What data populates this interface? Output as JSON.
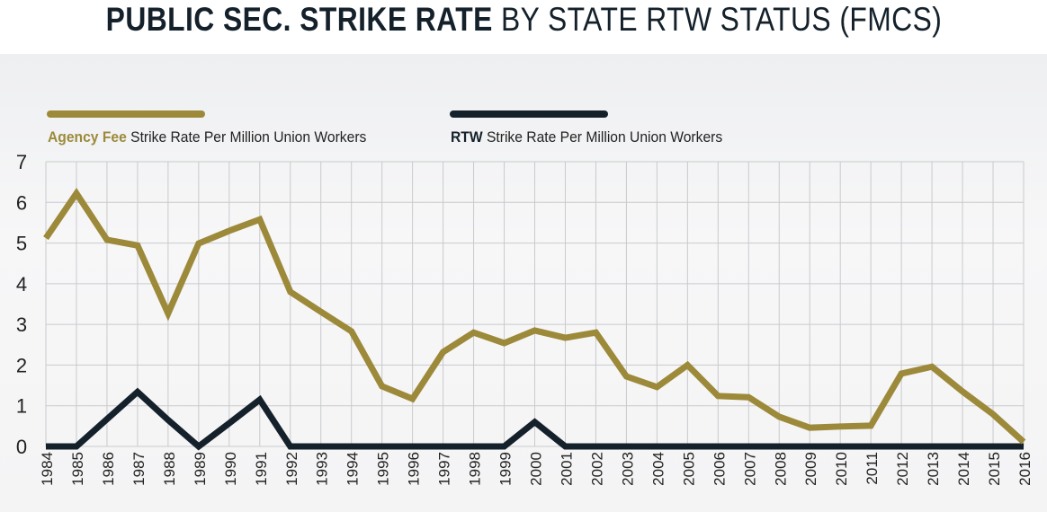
{
  "title": {
    "bold": "PUBLIC SEC. STRIKE RATE",
    "light": "BY STATE RTW STATUS (FMCS)"
  },
  "colors": {
    "agency_fee": "#9c8a3a",
    "rtw": "#14212b",
    "grid": "#c9cacc"
  },
  "chart_data": {
    "type": "line",
    "title": "PUBLIC SEC. STRIKE RATE BY STATE RTW STATUS (FMCS)",
    "xlabel": "",
    "ylabel": "",
    "ylim": [
      0,
      7
    ],
    "yticks": [
      "0",
      "1",
      "2",
      "3",
      "4",
      "5",
      "6",
      "7"
    ],
    "grid": true,
    "legend_position": "top",
    "x": [
      "1984",
      "1985",
      "1986",
      "1987",
      "1988",
      "1989",
      "1990",
      "1991",
      "1992",
      "1993",
      "1994",
      "1995",
      "1996",
      "1997",
      "1998",
      "1999",
      "2000",
      "2001",
      "2002",
      "2003",
      "2004",
      "2005",
      "2006",
      "2007",
      "2008",
      "2009",
      "2010",
      "2011",
      "2012",
      "2013",
      "2014",
      "2015",
      "2016"
    ],
    "series": [
      {
        "name_bold": "Agency Fee",
        "name": "Strike Rate Per Million Union Workers",
        "color": "#9c8a3a",
        "values": [
          5.12,
          6.22,
          5.08,
          4.94,
          3.27,
          4.99,
          5.3,
          5.58,
          3.8,
          3.31,
          2.83,
          1.48,
          1.17,
          2.32,
          2.8,
          2.54,
          2.85,
          2.67,
          2.8,
          1.72,
          1.46,
          2.0,
          1.24,
          1.21,
          0.73,
          0.46,
          0.49,
          0.51,
          1.79,
          1.96,
          1.35,
          0.79,
          0.11
        ]
      },
      {
        "name_bold": "RTW",
        "name": "Strike Rate Per Million Union Workers",
        "color": "#14212b",
        "values": [
          0,
          0,
          0.67,
          1.34,
          0.65,
          0,
          0.57,
          1.15,
          0,
          0,
          0,
          0,
          0,
          0,
          0,
          0,
          0.6,
          0,
          0,
          0,
          0,
          0,
          0,
          0,
          0,
          0,
          0,
          0,
          0,
          0,
          0,
          0,
          0
        ]
      }
    ]
  }
}
